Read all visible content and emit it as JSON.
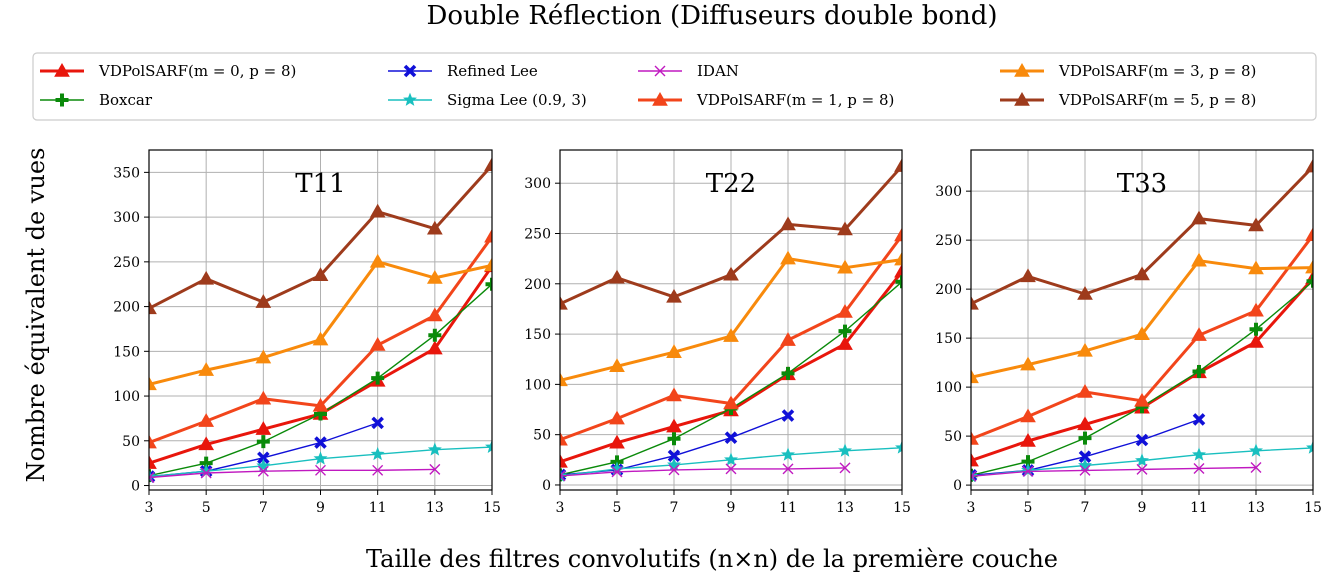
{
  "title": "Double Réflection (Diffuseurs double bond)",
  "ylabel": "Nombre équivalent de vues",
  "xlabel": "Taille des filtres convolutifs (n×n) de la première couche",
  "legend": [
    {
      "label": "VDPolSARF(m = 0, p = 8)",
      "color": "#e8160c",
      "marker": "triangle",
      "width": 3
    },
    {
      "label": "Boxcar",
      "color": "#0a8a0a",
      "marker": "plus",
      "width": 1.4
    },
    {
      "label": "Refined Lee",
      "color": "#1010d8",
      "marker": "x-thick",
      "width": 1.4
    },
    {
      "label": "Sigma Lee (0.9, 3)",
      "color": "#19bfbf",
      "marker": "star",
      "width": 1.4
    },
    {
      "label": "IDAN",
      "color": "#c019c0",
      "marker": "x-thin",
      "width": 1.4
    },
    {
      "label": "VDPolSARF(m = 1, p = 8)",
      "color": "#f2451b",
      "marker": "triangle",
      "width": 3
    },
    {
      "label": "VDPolSARF(m = 3, p = 8)",
      "color": "#f88a0c",
      "marker": "triangle",
      "width": 3
    },
    {
      "label": "VDPolSARF(m = 5, p = 8)",
      "color": "#9e3b1c",
      "marker": "triangle",
      "width": 3
    }
  ],
  "chart_data": [
    {
      "type": "line",
      "title": "T11",
      "x": [
        3,
        5,
        7,
        9,
        11,
        13,
        15
      ],
      "xticks": [
        "3",
        "5",
        "7",
        "9",
        "11",
        "13",
        "15"
      ],
      "xlim": [
        3,
        15
      ],
      "ylim": [
        -5,
        375
      ],
      "yticks": [
        "0",
        "50",
        "100",
        "150",
        "200",
        "250",
        "300",
        "350"
      ],
      "grid": true,
      "series": [
        {
          "name": "VDPolSARF(m = 0, p = 8)",
          "values": [
            25,
            46,
            63,
            80,
            117,
            153,
            245
          ]
        },
        {
          "name": "Boxcar",
          "values": [
            11,
            25,
            49,
            80,
            120,
            168,
            225
          ]
        },
        {
          "name": "Refined Lee",
          "values": [
            10,
            16,
            31,
            48,
            70,
            null,
            null
          ]
        },
        {
          "name": "Sigma Lee (0.9, 3)",
          "values": [
            10,
            16,
            22,
            30,
            35,
            40,
            43
          ]
        },
        {
          "name": "IDAN",
          "values": [
            9,
            14,
            16,
            17,
            17,
            18,
            null
          ]
        },
        {
          "name": "VDPolSARF(m = 1, p = 8)",
          "values": [
            48,
            72,
            97,
            89,
            157,
            190,
            278
          ]
        },
        {
          "name": "VDPolSARF(m = 3, p = 8)",
          "values": [
            113,
            129,
            143,
            163,
            250,
            232,
            246
          ]
        },
        {
          "name": "VDPolSARF(m = 5, p = 8)",
          "values": [
            198,
            231,
            205,
            235,
            306,
            287,
            358
          ]
        }
      ]
    },
    {
      "type": "line",
      "title": "T22",
      "x": [
        3,
        5,
        7,
        9,
        11,
        13,
        15
      ],
      "xticks": [
        "3",
        "5",
        "7",
        "9",
        "11",
        "13",
        "15"
      ],
      "xlim": [
        3,
        15
      ],
      "ylim": [
        -5,
        333
      ],
      "yticks": [
        "0",
        "50",
        "100",
        "150",
        "200",
        "250",
        "300"
      ],
      "grid": true,
      "series": [
        {
          "name": "VDPolSARF(m = 0, p = 8)",
          "values": [
            23,
            42,
            58,
            74,
            110,
            140,
            212
          ]
        },
        {
          "name": "Boxcar",
          "values": [
            10,
            23,
            46,
            76,
            111,
            153,
            202
          ]
        },
        {
          "name": "Refined Lee",
          "values": [
            10,
            15,
            29,
            47,
            69,
            null,
            null
          ]
        },
        {
          "name": "Sigma Lee (0.9, 3)",
          "values": [
            9,
            16,
            20,
            25,
            30,
            34,
            37
          ]
        },
        {
          "name": "IDAN",
          "values": [
            9,
            13,
            15,
            16,
            16,
            17,
            null
          ]
        },
        {
          "name": "VDPolSARF(m = 1, p = 8)",
          "values": [
            45,
            66,
            89,
            81,
            144,
            172,
            248
          ]
        },
        {
          "name": "VDPolSARF(m = 3, p = 8)",
          "values": [
            104,
            118,
            132,
            148,
            225,
            216,
            224
          ]
        },
        {
          "name": "VDPolSARF(m = 5, p = 8)",
          "values": [
            180,
            206,
            187,
            209,
            259,
            254,
            317
          ]
        }
      ]
    },
    {
      "type": "line",
      "title": "T33",
      "x": [
        3,
        5,
        7,
        9,
        11,
        13,
        15
      ],
      "xticks": [
        "3",
        "5",
        "7",
        "9",
        "11",
        "13",
        "15"
      ],
      "xlim": [
        3,
        15
      ],
      "ylim": [
        -5,
        342
      ],
      "yticks": [
        "0",
        "50",
        "100",
        "150",
        "200",
        "250",
        "300"
      ],
      "grid": true,
      "series": [
        {
          "name": "VDPolSARF(m = 0, p = 8)",
          "values": [
            25,
            45,
            62,
            79,
            115,
            146,
            211
          ]
        },
        {
          "name": "Boxcar",
          "values": [
            10,
            24,
            48,
            80,
            116,
            159,
            208
          ]
        },
        {
          "name": "Refined Lee",
          "values": [
            10,
            15,
            29,
            46,
            67,
            null,
            null
          ]
        },
        {
          "name": "Sigma Lee (0.9, 3)",
          "values": [
            9,
            15,
            20,
            25,
            31,
            35,
            38
          ]
        },
        {
          "name": "IDAN",
          "values": [
            9,
            14,
            15,
            16,
            17,
            18,
            null
          ]
        },
        {
          "name": "VDPolSARF(m = 1, p = 8)",
          "values": [
            47,
            70,
            95,
            86,
            153,
            178,
            255
          ]
        },
        {
          "name": "VDPolSARF(m = 3, p = 8)",
          "values": [
            110,
            123,
            137,
            154,
            229,
            221,
            222
          ]
        },
        {
          "name": "VDPolSARF(m = 5, p = 8)",
          "values": [
            185,
            213,
            195,
            215,
            272,
            265,
            325
          ]
        }
      ]
    }
  ]
}
